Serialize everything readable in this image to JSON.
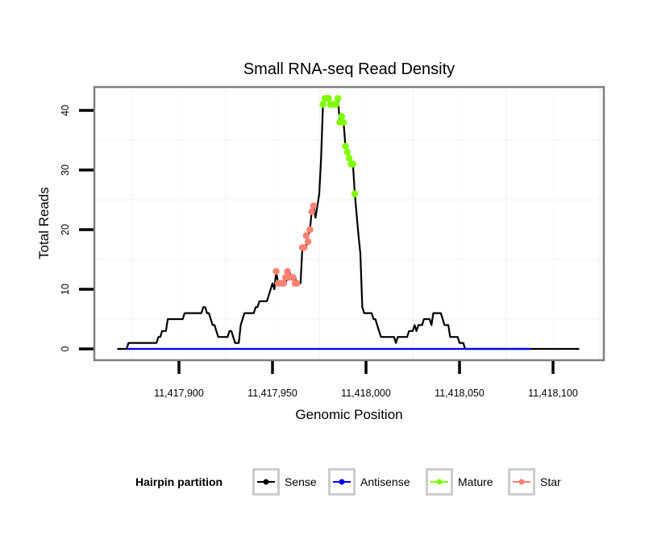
{
  "chart_data": {
    "type": "line",
    "title": "Small RNA-seq Read Density",
    "xlabel": "Genomic Position",
    "ylabel": "Total Reads",
    "xlim": [
      11417850,
      11418122
    ],
    "ylim": [
      -2,
      44
    ],
    "x_ticks": [
      11417900,
      11417950,
      11418000,
      11418050,
      11418100
    ],
    "x_tick_labels": [
      "11,417,900",
      "11,417,950",
      "11,418,000",
      "11,418,050",
      "11,418,100"
    ],
    "y_ticks": [
      0,
      10,
      20,
      30,
      40
    ],
    "y_tick_labels": [
      "0",
      "10",
      "20",
      "30",
      "40"
    ],
    "grid": true,
    "legend": {
      "title": "Hairpin partition",
      "position": "bottom",
      "entries": [
        {
          "label": "Sense",
          "color": "#000000"
        },
        {
          "label": "Antisense",
          "color": "#0000ff"
        },
        {
          "label": "Mature",
          "color": "#7fff00"
        },
        {
          "label": "Star",
          "color": "#fa8072"
        }
      ]
    },
    "series": [
      {
        "name": "Sense",
        "color": "#000000",
        "style": "line",
        "points": [
          [
            11417867,
            0
          ],
          [
            11417872,
            0
          ],
          [
            11417873,
            1
          ],
          [
            11417880,
            1
          ],
          [
            11417888,
            1
          ],
          [
            11417889,
            2
          ],
          [
            11417890,
            2
          ],
          [
            11417891,
            3
          ],
          [
            11417893,
            3
          ],
          [
            11417894,
            5
          ],
          [
            11417896,
            5
          ],
          [
            11417902,
            5
          ],
          [
            11417903,
            6
          ],
          [
            11417912,
            6
          ],
          [
            11417913,
            7
          ],
          [
            11417914,
            7
          ],
          [
            11417915,
            6
          ],
          [
            11417916,
            6
          ],
          [
            11417917,
            5
          ],
          [
            11417918,
            4
          ],
          [
            11417919,
            4
          ],
          [
            11417920,
            3
          ],
          [
            11417921,
            2
          ],
          [
            11417923,
            2
          ],
          [
            11417926,
            2
          ],
          [
            11417927,
            3
          ],
          [
            11417928,
            3
          ],
          [
            11417929,
            2
          ],
          [
            11417930,
            1
          ],
          [
            11417932,
            1
          ],
          [
            11417933,
            4
          ],
          [
            11417934,
            5
          ],
          [
            11417935,
            6
          ],
          [
            11417940,
            6
          ],
          [
            11417941,
            7
          ],
          [
            11417942,
            7
          ],
          [
            11417943,
            8
          ],
          [
            11417947,
            8
          ],
          [
            11417948,
            9
          ],
          [
            11417950,
            11
          ],
          [
            11417951,
            10
          ],
          [
            11417952,
            13
          ],
          [
            11417953,
            11
          ],
          [
            11417957,
            11
          ],
          [
            11417958,
            12
          ],
          [
            11417959,
            13
          ],
          [
            11417960,
            12
          ],
          [
            11417962,
            12
          ],
          [
            11417963,
            11
          ],
          [
            11417965,
            11
          ],
          [
            11417966,
            17
          ],
          [
            11417968,
            17
          ],
          [
            11417969,
            19
          ],
          [
            11417970,
            20
          ],
          [
            11417971,
            23
          ],
          [
            11417972,
            24
          ],
          [
            11417973,
            22
          ],
          [
            11417975,
            26
          ],
          [
            11417976,
            32
          ],
          [
            11417977,
            41
          ],
          [
            11417978,
            42
          ],
          [
            11417980,
            42
          ],
          [
            11417981,
            41
          ],
          [
            11417984,
            41
          ],
          [
            11417985,
            42
          ],
          [
            11417986,
            38
          ],
          [
            11417987,
            39
          ],
          [
            11417988,
            38
          ],
          [
            11417989,
            34
          ],
          [
            11417990,
            33
          ],
          [
            11417991,
            32
          ],
          [
            11417992,
            31
          ],
          [
            11417993,
            31
          ],
          [
            11417994,
            26
          ],
          [
            11417996,
            19
          ],
          [
            11417997,
            16
          ],
          [
            11417998,
            7
          ],
          [
            11417999,
            6
          ],
          [
            11418003,
            6
          ],
          [
            11418004,
            5
          ],
          [
            11418005,
            5
          ],
          [
            11418006,
            4
          ],
          [
            11418007,
            3
          ],
          [
            11418008,
            2
          ],
          [
            11418011,
            2
          ],
          [
            11418015,
            2
          ],
          [
            11418016,
            1
          ],
          [
            11418017,
            2
          ],
          [
            11418022,
            2
          ],
          [
            11418023,
            3
          ],
          [
            11418025,
            3
          ],
          [
            11418026,
            4
          ],
          [
            11418027,
            3
          ],
          [
            11418028,
            4
          ],
          [
            11418030,
            4
          ],
          [
            11418031,
            5
          ],
          [
            11418034,
            5
          ],
          [
            11418035,
            4
          ],
          [
            11418036,
            6
          ],
          [
            11418040,
            6
          ],
          [
            11418041,
            5
          ],
          [
            11418042,
            4
          ],
          [
            11418044,
            4
          ],
          [
            11418045,
            2
          ],
          [
            11418049,
            2
          ],
          [
            11418050,
            1
          ],
          [
            11418052,
            1
          ],
          [
            11418053,
            0
          ],
          [
            11418114,
            0
          ]
        ]
      },
      {
        "name": "Antisense",
        "color": "#0000ff",
        "style": "line",
        "points": [
          [
            11417872,
            0
          ],
          [
            11418088,
            0
          ]
        ]
      },
      {
        "name": "Mature",
        "color": "#7fff00",
        "style": "points",
        "points": [
          [
            11417977,
            41
          ],
          [
            11417978,
            42
          ],
          [
            11417979,
            42
          ],
          [
            11417980,
            42
          ],
          [
            11417981,
            41
          ],
          [
            11417982,
            41
          ],
          [
            11417983,
            41
          ],
          [
            11417984,
            41
          ],
          [
            11417985,
            42
          ],
          [
            11417986,
            38
          ],
          [
            11417987,
            39
          ],
          [
            11417988,
            38
          ],
          [
            11417989,
            34
          ],
          [
            11417990,
            33
          ],
          [
            11417991,
            32
          ],
          [
            11417992,
            31
          ],
          [
            11417993,
            31
          ],
          [
            11417994,
            26
          ]
        ]
      },
      {
        "name": "Star",
        "color": "#fa8072",
        "style": "points",
        "points": [
          [
            11417952,
            13
          ],
          [
            11417953,
            11
          ],
          [
            11417954,
            11
          ],
          [
            11417955,
            11
          ],
          [
            11417956,
            11
          ],
          [
            11417957,
            12
          ],
          [
            11417958,
            13
          ],
          [
            11417959,
            12
          ],
          [
            11417960,
            12
          ],
          [
            11417961,
            12
          ],
          [
            11417962,
            11
          ],
          [
            11417963,
            11
          ],
          [
            11417966,
            17
          ],
          [
            11417967,
            17
          ],
          [
            11417968,
            19
          ],
          [
            11417969,
            18
          ],
          [
            11417970,
            20
          ],
          [
            11417971,
            23
          ],
          [
            11417972,
            24
          ]
        ]
      }
    ]
  }
}
